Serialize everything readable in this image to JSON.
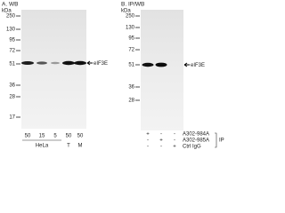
{
  "panels": [
    {
      "title": "A. WB",
      "unit": "kDa",
      "markers": [
        "250",
        "130",
        "95",
        "72",
        "51",
        "36",
        "28",
        "17"
      ],
      "target": "eIF3E",
      "lanes": [
        "50",
        "15",
        "5",
        "50",
        "50"
      ],
      "groups": [
        "HeLa",
        "T",
        "M"
      ]
    },
    {
      "title": "B. IP/WB",
      "unit": "kDa",
      "markers": [
        "250",
        "130",
        "95",
        "72",
        "51",
        "36",
        "28"
      ],
      "target": "eIF3E",
      "rows": [
        {
          "signs": [
            "+",
            "-",
            "-"
          ],
          "label": "A302-984A"
        },
        {
          "signs": [
            "-",
            "+",
            "-"
          ],
          "label": "A302-985A"
        },
        {
          "signs": [
            "-",
            "-",
            "+"
          ],
          "label": "Ctrl IgG"
        }
      ],
      "method": "IP"
    }
  ]
}
